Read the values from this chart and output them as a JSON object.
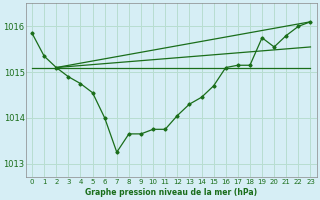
{
  "title": "Graphe pression niveau de la mer (hPa)",
  "bg_color": "#d6eef5",
  "grid_color": "#b8ddd0",
  "line_color": "#1a6e1a",
  "xlim": [
    -0.5,
    23.5
  ],
  "ylim": [
    1012.7,
    1016.5
  ],
  "yticks": [
    1013,
    1014,
    1015,
    1016
  ],
  "xticks": [
    0,
    1,
    2,
    3,
    4,
    5,
    6,
    7,
    8,
    9,
    10,
    11,
    12,
    13,
    14,
    15,
    16,
    17,
    18,
    19,
    20,
    21,
    22,
    23
  ],
  "series1_x": [
    0,
    1,
    2,
    3,
    4,
    5,
    6,
    7,
    8,
    9,
    10,
    11,
    12,
    13,
    14,
    15,
    16,
    17,
    18,
    19,
    20,
    21,
    22,
    23
  ],
  "series1_y": [
    1015.85,
    1015.35,
    1015.1,
    1014.9,
    1014.75,
    1014.55,
    1014.0,
    1013.25,
    1013.65,
    1013.65,
    1013.75,
    1013.75,
    1014.05,
    1014.3,
    1014.45,
    1014.7,
    1015.1,
    1015.15,
    1015.15,
    1015.75,
    1015.55,
    1015.8,
    1016.0,
    1016.1
  ],
  "line2_x": [
    0,
    23
  ],
  "line2_y": [
    1015.1,
    1015.1
  ],
  "line3_x": [
    2,
    23
  ],
  "line3_y": [
    1015.1,
    1015.55
  ],
  "line4_x": [
    2,
    23
  ],
  "line4_y": [
    1015.1,
    1016.1
  ],
  "ylabel_fontsize": 6,
  "xlabel_fontsize": 5.5,
  "tick_fontsize": 5.0
}
